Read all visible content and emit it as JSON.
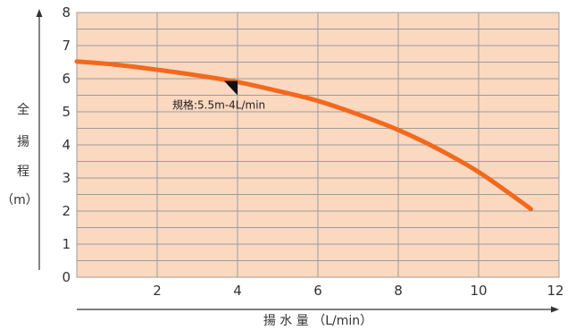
{
  "chart_data": {
    "type": "line",
    "xlabel": "揚 水 量 （L/min）",
    "ylabel_chars": [
      "全",
      "揚",
      "程",
      "（m）"
    ],
    "x_ticks": [
      2,
      4,
      6,
      8,
      10,
      12
    ],
    "y_ticks": [
      0,
      1,
      2,
      3,
      4,
      5,
      6,
      7,
      8
    ],
    "xlim": [
      0,
      12
    ],
    "ylim": [
      0,
      8
    ],
    "grid": true,
    "series": [
      {
        "x": [
          0,
          1,
          2,
          3,
          4,
          5,
          6,
          7,
          8,
          9,
          10,
          11,
          11.3
        ],
        "y": [
          6.52,
          6.42,
          6.27,
          6.1,
          5.9,
          5.63,
          5.33,
          4.92,
          4.45,
          3.87,
          3.18,
          2.33,
          2.06
        ]
      }
    ],
    "annotation": {
      "text": "規格:5.5m-4L/min",
      "x": 4,
      "y": 5.5
    }
  },
  "colors": {
    "plot_background": "#fbd8c0",
    "grid": "#9c9c9c",
    "line": "#f2691e",
    "axis": "#333333"
  }
}
